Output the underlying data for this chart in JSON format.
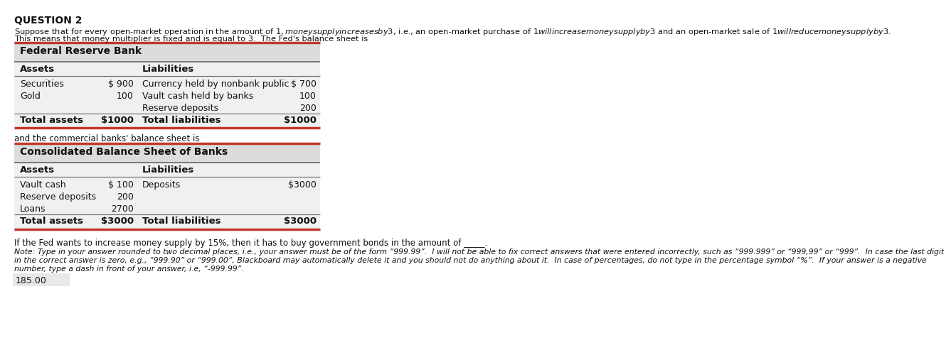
{
  "title": "QUESTION 2",
  "intro_line1": "Suppose that for every open-market operation in the amount of $1, money supply increases by $3, i.e., an open-market purchase of $1 will increase money supply by $3 and an open-market sale of $1 will reduce money supply by $3.",
  "intro_line2": "This means that money multiplier is fixed and is equal to 3.  The Fed's balance sheet is",
  "fed_title": "Federal Reserve Bank",
  "fed_assets_header": "Assets",
  "fed_liabilities_header": "Liabilities",
  "fed_asset_labels": [
    "Securities",
    "Gold"
  ],
  "fed_asset_values": [
    "$ 900",
    "100"
  ],
  "fed_liability_labels": [
    "Currency held by nonbank public",
    "Vault cash held by banks",
    "Reserve deposits"
  ],
  "fed_liability_values": [
    "$ 700",
    "100",
    "200"
  ],
  "fed_total_assets_label": "Total assets",
  "fed_total_assets_value": "$1000",
  "fed_total_liabilities_label": "Total liabilities",
  "fed_total_liabilities_value": "$1000",
  "between_text": "and the commercial banks' balance sheet is",
  "bank_title": "Consolidated Balance Sheet of Banks",
  "bank_assets_header": "Assets",
  "bank_liabilities_header": "Liabilities",
  "bank_asset_labels": [
    "Vault cash",
    "Reserve deposits",
    "Loans"
  ],
  "bank_asset_values": [
    "$ 100",
    "200",
    "2700"
  ],
  "bank_liability_labels": [
    "Deposits"
  ],
  "bank_liability_values": [
    "$3000"
  ],
  "bank_total_assets_label": "Total assets",
  "bank_total_assets_value": "$3000",
  "bank_total_liabilities_label": "Total liabilities",
  "bank_total_liabilities_value": "$3000",
  "question_text": "If the Fed wants to increase money supply by 15%, then it has to buy government bonds in the amount of _____.",
  "note_line1": "Note: Type in your answer rounded to two decimal places, i.e., your answer must be of the form “999.99”.  I will not be able to fix correct answers that were entered incorrectly, such as “999.999” or “999,99” or “999”.  In case the last digit",
  "note_line2": "in the correct answer is zero, e.g., “999.90” or “999.00”, Blackboard may automatically delete it and you should not do anything about it.  In case of percentages, do not type in the percentage symbol “%”.  If your answer is a negative",
  "note_line3": "number, type a dash in front of your answer, i.e, “-999.99”.",
  "answer": "185.00",
  "bg_color": "#ffffff",
  "table_bg": "#f0f0f0",
  "table_header_bg": "#dcdcdc",
  "border_color_red": "#c0392b",
  "border_color_dark": "#666666",
  "text_color": "#111111"
}
